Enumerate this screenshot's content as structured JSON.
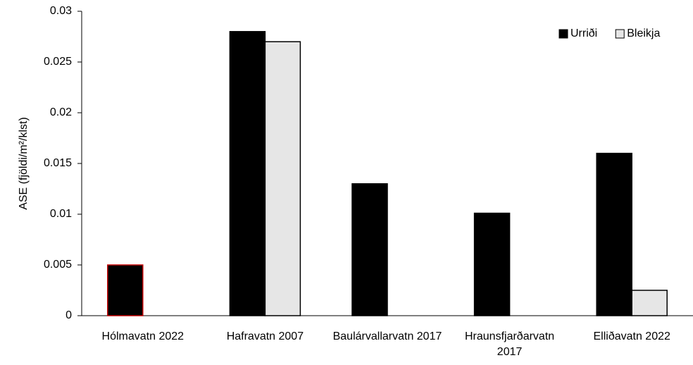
{
  "chart_data": {
    "type": "bar",
    "y_label": "ASE (fjöldi/m²/klst)",
    "categories": [
      "Hólmavatn 2022",
      "Hafravatn 2007",
      "Baulárvallarvatn 2017",
      "Hraunsfjarðarvatn 2017",
      "Elliðavatn 2022"
    ],
    "series": [
      {
        "name": "Urriði",
        "color": "#000000",
        "edgecolors": [
          "#c00000",
          "#000000",
          "#000000",
          "#000000",
          "#000000"
        ],
        "values": [
          0.005,
          0.028,
          0.013,
          0.0101,
          0.016
        ]
      },
      {
        "name": "Bleikja",
        "color": "#e6e6e6",
        "edgecolors": [
          "#000000",
          "#000000",
          "#000000",
          "#000000",
          "#000000"
        ],
        "values": [
          null,
          0.027,
          null,
          null,
          0.0025
        ]
      }
    ],
    "ylim": [
      0,
      0.03
    ],
    "yticks": [
      0,
      0.005,
      0.01,
      0.015,
      0.02,
      0.025,
      0.03
    ],
    "grid": false,
    "legend": "upper right"
  }
}
